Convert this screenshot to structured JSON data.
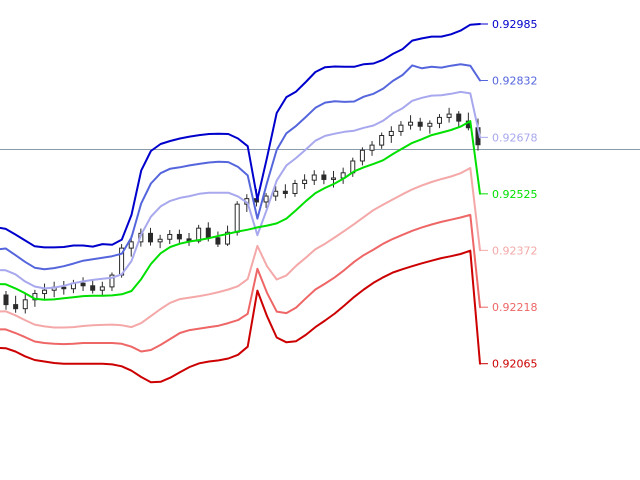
{
  "chart_data": {
    "type": "line",
    "title": "",
    "xlabel": "",
    "ylabel": "",
    "ylim": [
      0.9175,
      0.9305
    ],
    "current_price": 0.92645,
    "current_price_line_color": "#8a9aa8",
    "candle_color": "#2a2a2a",
    "series": [
      {
        "name": "",
        "color": "#0000cc",
        "width": 2,
        "label": "0.92985",
        "values": [
          0.92435,
          0.9243,
          0.92415,
          0.92399,
          0.92383,
          0.9238,
          0.9238,
          0.92381,
          0.92385,
          0.92385,
          0.92382,
          0.92389,
          0.92387,
          0.92401,
          0.92468,
          0.92588,
          0.92641,
          0.9266,
          0.92668,
          0.92675,
          0.9268,
          0.92684,
          0.92687,
          0.92688,
          0.92687,
          0.92675,
          0.92654,
          0.9251,
          0.92623,
          0.92744,
          0.92787,
          0.92802,
          0.92828,
          0.92855,
          0.92868,
          0.9287,
          0.92869,
          0.92869,
          0.92876,
          0.92878,
          0.92888,
          0.92904,
          0.92917,
          0.9294,
          0.92946,
          0.92951,
          0.92951,
          0.92957,
          0.92967,
          0.92983,
          0.92985
        ]
      },
      {
        "name": "",
        "color": "#5566dd",
        "width": 2,
        "label": "0.92832",
        "values": [
          0.92374,
          0.92377,
          0.92359,
          0.92341,
          0.92325,
          0.92321,
          0.92324,
          0.92329,
          0.92336,
          0.92344,
          0.92348,
          0.92352,
          0.92356,
          0.92363,
          0.92407,
          0.92499,
          0.92553,
          0.92581,
          0.92593,
          0.92597,
          0.92602,
          0.92606,
          0.9261,
          0.92612,
          0.92611,
          0.92598,
          0.92575,
          0.92458,
          0.92555,
          0.92644,
          0.92689,
          0.92709,
          0.92733,
          0.92758,
          0.92772,
          0.92776,
          0.92774,
          0.92775,
          0.92788,
          0.92796,
          0.9281,
          0.92831,
          0.92847,
          0.92873,
          0.92865,
          0.92869,
          0.92867,
          0.92872,
          0.92876,
          0.92872,
          0.92832
        ]
      },
      {
        "name": "",
        "color": "#a8a8ee",
        "width": 2,
        "label": "0.92678",
        "values": [
          0.92319,
          0.92318,
          0.92307,
          0.92288,
          0.92274,
          0.92269,
          0.92271,
          0.92276,
          0.92283,
          0.92288,
          0.92292,
          0.92295,
          0.92298,
          0.92307,
          0.92343,
          0.92415,
          0.92463,
          0.92491,
          0.92506,
          0.92514,
          0.92519,
          0.92525,
          0.92528,
          0.92528,
          0.92528,
          0.92518,
          0.925,
          0.92413,
          0.92484,
          0.92561,
          0.92602,
          0.92622,
          0.92645,
          0.92669,
          0.92682,
          0.92688,
          0.92693,
          0.92696,
          0.92704,
          0.9271,
          0.92723,
          0.92743,
          0.92757,
          0.92777,
          0.92785,
          0.92791,
          0.92792,
          0.92796,
          0.92801,
          0.92797,
          0.92678
        ]
      },
      {
        "name": "",
        "color": "#00e000",
        "width": 2,
        "label": "0.92525",
        "values": [
          0.92281,
          0.9228,
          0.92269,
          0.92256,
          0.92241,
          0.92238,
          0.92239,
          0.92242,
          0.92245,
          0.92248,
          0.92249,
          0.92249,
          0.9225,
          0.92253,
          0.92262,
          0.92294,
          0.92335,
          0.92364,
          0.92381,
          0.9239,
          0.92396,
          0.924,
          0.92405,
          0.92411,
          0.92417,
          0.92423,
          0.92428,
          0.92434,
          0.92439,
          0.92445,
          0.92458,
          0.92481,
          0.92505,
          0.92527,
          0.92541,
          0.92553,
          0.92568,
          0.92586,
          0.92597,
          0.92606,
          0.92616,
          0.92633,
          0.92648,
          0.92663,
          0.92673,
          0.92684,
          0.92691,
          0.92698,
          0.92707,
          0.92722,
          0.92525
        ]
      },
      {
        "name": "",
        "color": "#f4a8a8",
        "width": 2,
        "label": "0.92372",
        "values": [
          0.92206,
          0.92207,
          0.92196,
          0.92183,
          0.92171,
          0.92166,
          0.92163,
          0.92163,
          0.92164,
          0.92167,
          0.92169,
          0.9217,
          0.92171,
          0.92169,
          0.92164,
          0.92175,
          0.92194,
          0.92213,
          0.9223,
          0.9224,
          0.92244,
          0.92248,
          0.92253,
          0.92259,
          0.92266,
          0.92275,
          0.92294,
          0.92384,
          0.92329,
          0.92293,
          0.92304,
          0.9233,
          0.92352,
          0.92375,
          0.9239,
          0.92407,
          0.92425,
          0.92443,
          0.92462,
          0.92481,
          0.92496,
          0.9251,
          0.92524,
          0.92537,
          0.92548,
          0.92557,
          0.92565,
          0.92572,
          0.92581,
          0.92595,
          0.92372
        ]
      },
      {
        "name": "",
        "color": "#ee6666",
        "width": 2,
        "label": "0.92218",
        "values": [
          0.92158,
          0.92158,
          0.92148,
          0.92137,
          0.92125,
          0.92121,
          0.92119,
          0.92118,
          0.92119,
          0.92121,
          0.92121,
          0.92121,
          0.92121,
          0.92119,
          0.92111,
          0.92098,
          0.92102,
          0.92116,
          0.92132,
          0.92148,
          0.92156,
          0.9216,
          0.92164,
          0.92168,
          0.92175,
          0.92183,
          0.922,
          0.92322,
          0.92257,
          0.92206,
          0.92202,
          0.92217,
          0.92242,
          0.92266,
          0.92282,
          0.92299,
          0.92319,
          0.92341,
          0.92359,
          0.92374,
          0.9239,
          0.92403,
          0.92414,
          0.92425,
          0.92434,
          0.92442,
          0.92449,
          0.92455,
          0.92461,
          0.92468,
          0.92218
        ]
      },
      {
        "name": "",
        "color": "#cc0000",
        "width": 2,
        "label": "0.92065",
        "values": [
          0.92108,
          0.92107,
          0.92098,
          0.92085,
          0.92075,
          0.92071,
          0.92067,
          0.92065,
          0.92065,
          0.92065,
          0.92065,
          0.92065,
          0.92063,
          0.92058,
          0.92046,
          0.92029,
          0.92015,
          0.92016,
          0.92027,
          0.92042,
          0.92056,
          0.92066,
          0.92071,
          0.92074,
          0.92079,
          0.92089,
          0.92111,
          0.92263,
          0.92194,
          0.92136,
          0.92123,
          0.92126,
          0.92143,
          0.92164,
          0.92182,
          0.92201,
          0.92223,
          0.92246,
          0.92266,
          0.92284,
          0.92299,
          0.92312,
          0.92321,
          0.92329,
          0.92337,
          0.92344,
          0.92351,
          0.92356,
          0.92362,
          0.92371,
          0.92065
        ]
      }
    ],
    "candles_ohlc": [
      [
        0.92251,
        0.92262,
        0.92211,
        0.92225
      ],
      [
        0.92225,
        0.92249,
        0.92203,
        0.92214
      ],
      [
        0.92214,
        0.92256,
        0.92201,
        0.92238
      ],
      [
        0.92238,
        0.92265,
        0.92219,
        0.92255
      ],
      [
        0.92255,
        0.92282,
        0.92238,
        0.92264
      ],
      [
        0.92264,
        0.92287,
        0.92245,
        0.92272
      ],
      [
        0.92272,
        0.92289,
        0.92252,
        0.92268
      ],
      [
        0.92268,
        0.92292,
        0.92256,
        0.92283
      ],
      [
        0.92283,
        0.92299,
        0.92262,
        0.92276
      ],
      [
        0.92276,
        0.92293,
        0.92255,
        0.92264
      ],
      [
        0.92264,
        0.92287,
        0.92249,
        0.92273
      ],
      [
        0.92273,
        0.92312,
        0.92262,
        0.92305
      ],
      [
        0.92305,
        0.92389,
        0.92298,
        0.92378
      ],
      [
        0.92378,
        0.92412,
        0.92355,
        0.92395
      ],
      [
        0.92395,
        0.92431,
        0.92382,
        0.92418
      ],
      [
        0.92418,
        0.92433,
        0.92385,
        0.92395
      ],
      [
        0.92395,
        0.92414,
        0.92378,
        0.92402
      ],
      [
        0.92402,
        0.92427,
        0.92389,
        0.92415
      ],
      [
        0.92415,
        0.92428,
        0.92392,
        0.92403
      ],
      [
        0.92403,
        0.92419,
        0.92384,
        0.92397
      ],
      [
        0.92397,
        0.92441,
        0.92391,
        0.92432
      ],
      [
        0.92432,
        0.92448,
        0.92396,
        0.92406
      ],
      [
        0.92406,
        0.92423,
        0.92381,
        0.92389
      ],
      [
        0.92389,
        0.92439,
        0.92384,
        0.92421
      ],
      [
        0.92421,
        0.92505,
        0.92412,
        0.92497
      ],
      [
        0.92497,
        0.92524,
        0.92476,
        0.92512
      ],
      [
        0.92512,
        0.92538,
        0.92491,
        0.92503
      ],
      [
        0.92503,
        0.92527,
        0.92487,
        0.92519
      ],
      [
        0.92519,
        0.92546,
        0.92506,
        0.92532
      ],
      [
        0.92532,
        0.92551,
        0.92513,
        0.92526
      ],
      [
        0.92526,
        0.92563,
        0.92517,
        0.92553
      ],
      [
        0.92553,
        0.92578,
        0.92538,
        0.92562
      ],
      [
        0.92562,
        0.92589,
        0.92549,
        0.92576
      ],
      [
        0.92576,
        0.92588,
        0.92551,
        0.92564
      ],
      [
        0.92564,
        0.92587,
        0.92542,
        0.92568
      ],
      [
        0.92568,
        0.92596,
        0.92552,
        0.92582
      ],
      [
        0.92582,
        0.92623,
        0.92571,
        0.92614
      ],
      [
        0.92614,
        0.92651,
        0.92602,
        0.92643
      ],
      [
        0.92643,
        0.92668,
        0.92628,
        0.92657
      ],
      [
        0.92657,
        0.92691,
        0.92647,
        0.92683
      ],
      [
        0.92683,
        0.92708,
        0.92663,
        0.92694
      ],
      [
        0.92694,
        0.92722,
        0.92682,
        0.92711
      ],
      [
        0.92711,
        0.92738,
        0.92699,
        0.92719
      ],
      [
        0.92719,
        0.92731,
        0.92696,
        0.92708
      ],
      [
        0.92708,
        0.92724,
        0.92688,
        0.92716
      ],
      [
        0.92716,
        0.92741,
        0.92703,
        0.92732
      ],
      [
        0.92732,
        0.92758,
        0.92718,
        0.92741
      ],
      [
        0.92741,
        0.92749,
        0.92706,
        0.92722
      ],
      [
        0.92722,
        0.92745,
        0.92697,
        0.92704
      ],
      [
        0.92704,
        0.92729,
        0.92642,
        0.92658
      ]
    ]
  }
}
